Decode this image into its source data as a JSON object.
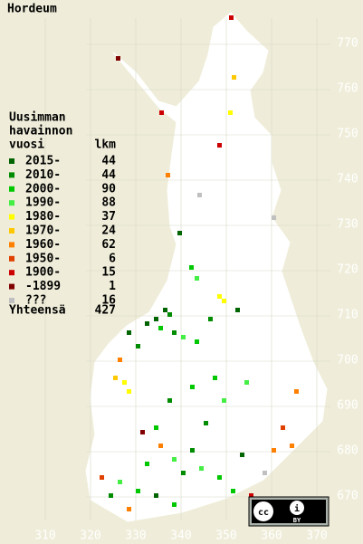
{
  "title": "Hordeum",
  "legend": {
    "heading": [
      "Uusimman",
      "havainnon",
      "vuosi"
    ],
    "count_header": "lkm",
    "items": [
      {
        "label": "2015-",
        "count": "44",
        "color": "#006400"
      },
      {
        "label": "2010-",
        "count": "44",
        "color": "#008c00"
      },
      {
        "label": "2000-",
        "count": "90",
        "color": "#00c800"
      },
      {
        "label": "1990-",
        "count": "88",
        "color": "#44ee44"
      },
      {
        "label": "1980-",
        "count": "37",
        "color": "#ffff00"
      },
      {
        "label": "1970-",
        "count": "24",
        "color": "#ffc800"
      },
      {
        "label": "1960-",
        "count": "62",
        "color": "#ff8000"
      },
      {
        "label": "1950-",
        "count": "6",
        "color": "#e04000"
      },
      {
        "label": "1900-",
        "count": "15",
        "color": "#cc0000"
      },
      {
        "label": "-1899",
        "count": "1",
        "color": "#800000"
      },
      {
        "label": "???",
        "count": "16",
        "color": "#c0c0c0"
      }
    ],
    "total_label": "Yhteensä",
    "total": "427"
  },
  "x_ticks": [
    310,
    320,
    330,
    340,
    350,
    360,
    370
  ],
  "y_ticks": [
    670,
    680,
    690,
    700,
    710,
    720,
    730,
    740,
    750,
    760,
    770
  ]
}
